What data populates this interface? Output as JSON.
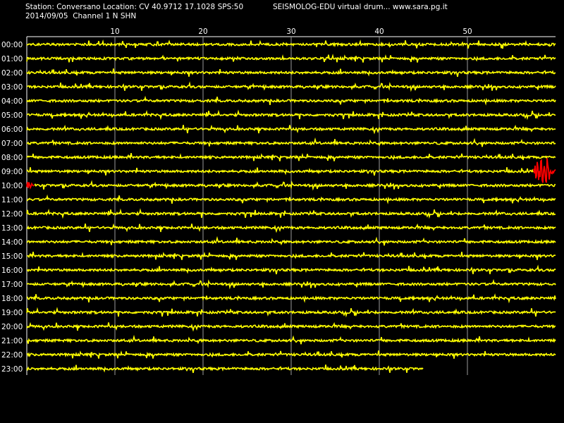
{
  "header": {
    "station_line": "Station: Conversano Location: CV 40.9712 17.1028 SPS:50",
    "program_line": "SEISMOLOG-EDU virtual drum... www.sara.pg.it",
    "date_line": "2014/09/05  Channel 1 N SHN"
  },
  "colors": {
    "background": "#000000",
    "trace": "#ffff00",
    "event": "#ff0000",
    "grid": "#ffffff"
  },
  "chart_data": {
    "type": "line",
    "title": "",
    "xlabel": "",
    "ylabel": "",
    "x_ticks": [
      10,
      20,
      30,
      40,
      50
    ],
    "xlim": [
      0,
      60
    ],
    "hour_labels": [
      "00:00",
      "01:00",
      "02:00",
      "03:00",
      "04:00",
      "05:00",
      "06:00",
      "07:00",
      "08:00",
      "09:00",
      "10:00",
      "11:00",
      "12:00",
      "13:00",
      "14:00",
      "15:00",
      "16:00",
      "17:00",
      "18:00",
      "19:00",
      "20:00",
      "21:00",
      "22:00",
      "23:00"
    ],
    "last_row_end_minute": 45,
    "event": {
      "start_row": 9,
      "start_minute": 57.5,
      "end_row": 10,
      "end_minute": 0.8,
      "color": "#ff0000"
    }
  }
}
